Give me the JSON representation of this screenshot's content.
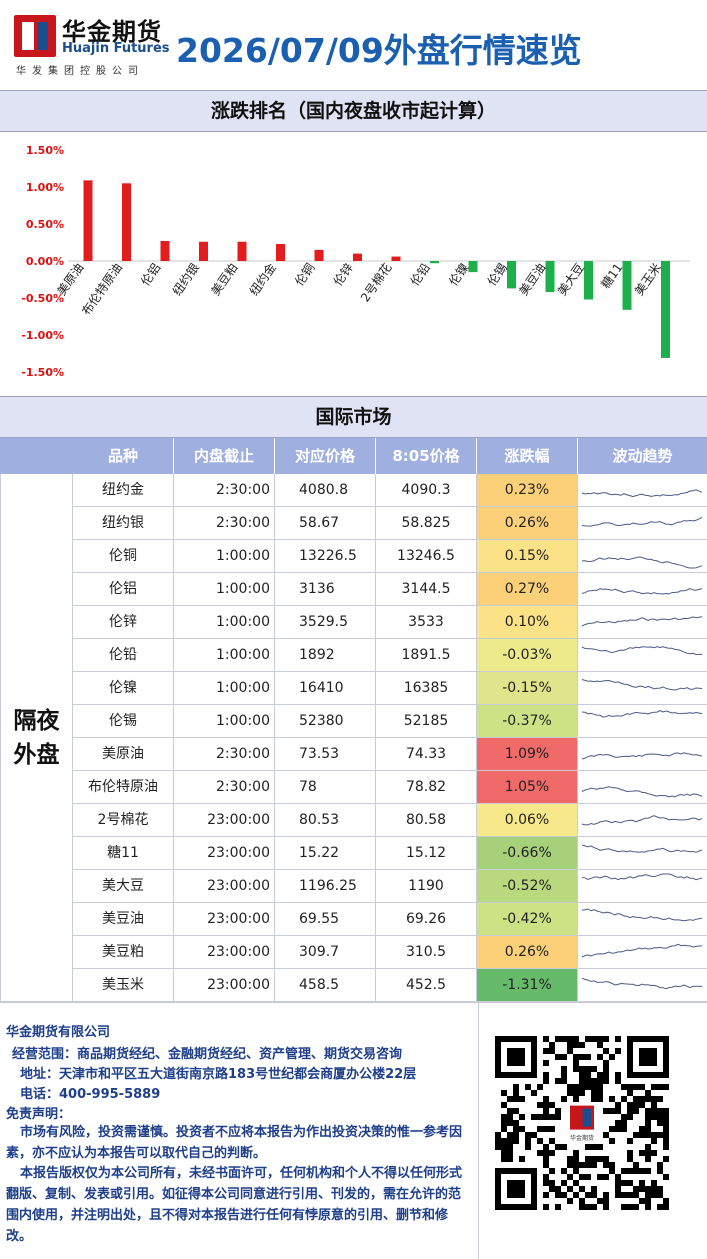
{
  "header": {
    "company_cn": "华金期货",
    "company_en": "Huajin Futures",
    "company_sub": "华发集团控股公司",
    "title": "2026/07/09外盘行情速览"
  },
  "section1": {
    "title": "涨跌排名（国内夜盘收市起计算）"
  },
  "section2": {
    "title": "国际市场"
  },
  "colors": {
    "up": "#e31d1d",
    "down": "#1db04a",
    "header_blue": "#1b5fb0",
    "table_head": "#9fb0e0"
  },
  "chart_data": {
    "type": "bar",
    "categories": [
      "美原油",
      "布伦特原油",
      "伦铝",
      "纽约银",
      "美豆粕",
      "纽约金",
      "伦铜",
      "伦锌",
      "2号棉花",
      "伦铅",
      "伦镍",
      "伦锡",
      "美豆油",
      "美大豆",
      "糖11",
      "美玉米"
    ],
    "values": [
      1.09,
      1.05,
      0.27,
      0.26,
      0.26,
      0.23,
      0.15,
      0.1,
      0.06,
      -0.03,
      -0.15,
      -0.37,
      -0.42,
      -0.52,
      -0.66,
      -1.31
    ],
    "y_ticks": [
      "1.50%",
      "1.00%",
      "0.50%",
      "0.00%",
      "-0.50%",
      "-1.00%",
      "-1.50%"
    ],
    "ylim": [
      -1.5,
      1.5
    ]
  },
  "table": {
    "side_label_1": "隔夜",
    "side_label_2": "外盘",
    "headers": [
      "品种",
      "内盘截止",
      "对应价格",
      "8:05价格",
      "涨跌幅",
      "波动趋势"
    ],
    "rows": [
      {
        "name": "纽约金",
        "time": "2:30:00",
        "p1": "4080.8",
        "p2": "4090.3",
        "chg": "0.23%",
        "v": 0.23
      },
      {
        "name": "纽约银",
        "time": "2:30:00",
        "p1": "58.67",
        "p2": "58.825",
        "chg": "0.26%",
        "v": 0.26
      },
      {
        "name": "伦铜",
        "time": "1:00:00",
        "p1": "13226.5",
        "p2": "13246.5",
        "chg": "0.15%",
        "v": 0.15
      },
      {
        "name": "伦铝",
        "time": "1:00:00",
        "p1": "3136",
        "p2": "3144.5",
        "chg": "0.27%",
        "v": 0.27
      },
      {
        "name": "伦锌",
        "time": "1:00:00",
        "p1": "3529.5",
        "p2": "3533",
        "chg": "0.10%",
        "v": 0.1
      },
      {
        "name": "伦铅",
        "time": "1:00:00",
        "p1": "1892",
        "p2": "1891.5",
        "chg": "-0.03%",
        "v": -0.03
      },
      {
        "name": "伦镍",
        "time": "1:00:00",
        "p1": "16410",
        "p2": "16385",
        "chg": "-0.15%",
        "v": -0.15
      },
      {
        "name": "伦锡",
        "time": "1:00:00",
        "p1": "52380",
        "p2": "52185",
        "chg": "-0.37%",
        "v": -0.37
      },
      {
        "name": "美原油",
        "time": "2:30:00",
        "p1": "73.53",
        "p2": "74.33",
        "chg": "1.09%",
        "v": 1.09
      },
      {
        "name": "布伦特原油",
        "time": "2:30:00",
        "p1": "78",
        "p2": "78.82",
        "chg": "1.05%",
        "v": 1.05
      },
      {
        "name": "2号棉花",
        "time": "23:00:00",
        "p1": "80.53",
        "p2": "80.58",
        "chg": "0.06%",
        "v": 0.06
      },
      {
        "name": "糖11",
        "time": "23:00:00",
        "p1": "15.22",
        "p2": "15.12",
        "chg": "-0.66%",
        "v": -0.66
      },
      {
        "name": "美大豆",
        "time": "23:00:00",
        "p1": "1196.25",
        "p2": "1190",
        "chg": "-0.52%",
        "v": -0.52
      },
      {
        "name": "美豆油",
        "time": "23:00:00",
        "p1": "69.55",
        "p2": "69.26",
        "chg": "-0.42%",
        "v": -0.42
      },
      {
        "name": "美豆粕",
        "time": "23:00:00",
        "p1": "309.7",
        "p2": "310.5",
        "chg": "0.26%",
        "v": 0.26
      },
      {
        "name": "美玉米",
        "time": "23:00:00",
        "p1": "458.5",
        "p2": "452.5",
        "chg": "-1.31%",
        "v": -1.31
      }
    ]
  },
  "footer": {
    "company": "华金期货有限公司",
    "scope": "经营范围：商品期货经纪、金融期货经纪、资产管理、期货交易咨询",
    "address": "地址：天津市和平区五大道街南京路183号世纪都会商厦办公楼22层",
    "phone": "电话：400-995-5889",
    "disclaimer_title": "免责声明：",
    "disclaimer_1": "市场有风险，投资需谨慎。投资者不应将本报告为作出投资决策的惟一参考因素，亦不应认为本报告可以取代自己的判断。",
    "disclaimer_2": "本报告版权仅为本公司所有，未经书面许可，任何机构和个人不得以任何形式翻版、复制、发表或引用。如征得本公司同意进行引用、刊发的，需在允许的范围内使用，并注明出处，且不得对本报告进行任何有悖原意的引用、删节和修改。",
    "qr_logo_text": "华金期货"
  }
}
